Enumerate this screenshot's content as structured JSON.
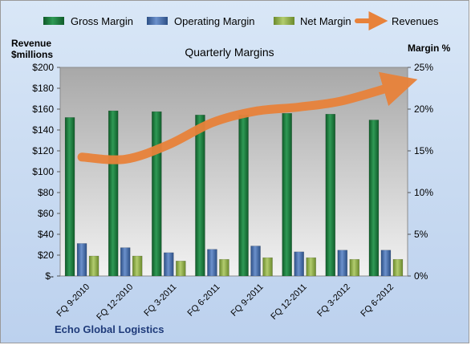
{
  "chart_data": {
    "type": "bar",
    "title": "Quarterly Margins",
    "company": "Echo Global Logistics",
    "ylabel_left": [
      "Revenue",
      "$millions"
    ],
    "ylabel_right": "Margin %",
    "categories": [
      "FQ 9-2010",
      "FQ 12-2010",
      "FQ 3-2011",
      "FQ 6-2011",
      "FQ 9-2011",
      "FQ 12-2011",
      "FQ 3-2012",
      "FQ 6-2012"
    ],
    "left_axis": {
      "min": 0,
      "max": 200,
      "step": 20,
      "tick_labels": [
        "$-",
        "$20",
        "$40",
        "$60",
        "$80",
        "$100",
        "$120",
        "$140",
        "$160",
        "$180",
        "$200"
      ]
    },
    "right_axis": {
      "min": 0,
      "max": 25,
      "step": 5,
      "tick_labels": [
        "0%",
        "5%",
        "10%",
        "15%",
        "20%",
        "25%"
      ]
    },
    "series": [
      {
        "name": "Gross Margin",
        "axis": "right",
        "kind": "bar",
        "color": "#1e7a3c",
        "values": [
          19.0,
          19.8,
          19.7,
          19.3,
          19.3,
          19.5,
          19.4,
          18.7
        ]
      },
      {
        "name": "Operating Margin",
        "axis": "right",
        "kind": "bar",
        "color": "#3f68a8",
        "values": [
          3.9,
          3.4,
          2.8,
          3.2,
          3.6,
          2.9,
          3.1,
          3.1
        ]
      },
      {
        "name": "Net Margin",
        "axis": "right",
        "kind": "bar",
        "color": "#87a641",
        "values": [
          2.4,
          2.4,
          1.8,
          2.0,
          2.2,
          2.2,
          2.0,
          2.0
        ]
      },
      {
        "name": "Revenues",
        "axis": "left",
        "kind": "line",
        "color": "#e8823a",
        "values": [
          114,
          112,
          126,
          147,
          158,
          162,
          168,
          183
        ]
      }
    ],
    "legend_position": "top",
    "grid": false
  }
}
